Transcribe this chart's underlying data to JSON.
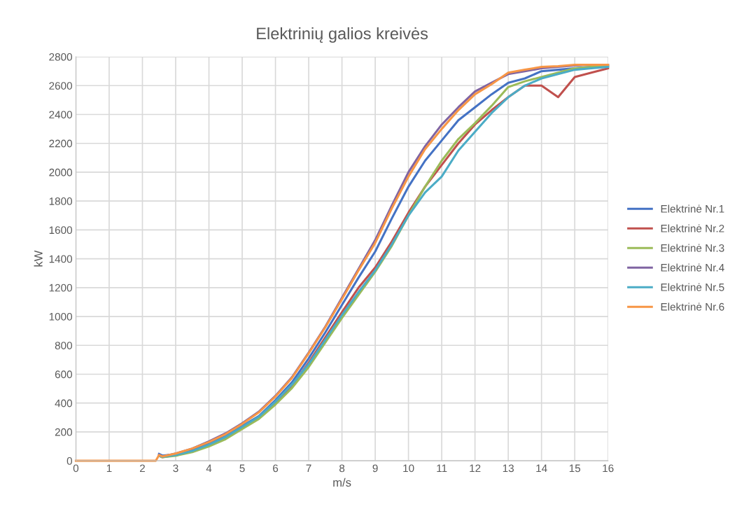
{
  "chart_data": {
    "type": "line",
    "title": "Elektrinių galios kreivės",
    "xlabel": "m/s",
    "ylabel": "kW",
    "x": [
      0,
      1,
      2,
      2.4,
      2.5,
      2.6,
      3,
      3.5,
      4,
      4.5,
      5,
      5.5,
      6,
      6.5,
      7,
      7.5,
      8,
      8.5,
      9,
      9.5,
      10,
      10.5,
      11,
      11.5,
      12,
      12.5,
      13,
      13.5,
      14,
      14.5,
      15,
      15.5,
      16
    ],
    "series": [
      {
        "name": "Elektrinė Nr.1",
        "color": "#4472c4",
        "values": [
          null,
          null,
          null,
          null,
          48,
          36,
          45,
          75,
          120,
          170,
          240,
          310,
          420,
          545,
          710,
          890,
          1080,
          1270,
          1450,
          1680,
          1900,
          2080,
          2220,
          2360,
          2450,
          2540,
          2620,
          2650,
          2700,
          2710,
          2720,
          2730,
          2735
        ]
      },
      {
        "name": "Elektrinė Nr.2",
        "color": "#c0504d",
        "values": [
          null,
          null,
          null,
          null,
          35,
          25,
          40,
          65,
          110,
          160,
          230,
          300,
          400,
          520,
          680,
          855,
          1030,
          1200,
          1340,
          1520,
          1720,
          1900,
          2050,
          2200,
          2330,
          2430,
          2520,
          2600,
          2600,
          2520,
          2660,
          2690,
          2720
        ]
      },
      {
        "name": "Elektrinė Nr.3",
        "color": "#9bbb59",
        "values": [
          null,
          null,
          null,
          null,
          35,
          25,
          35,
          60,
          100,
          150,
          220,
          290,
          390,
          505,
          650,
          820,
          990,
          1150,
          1310,
          1490,
          1700,
          1900,
          2080,
          2230,
          2340,
          2460,
          2590,
          2630,
          2660,
          2690,
          2720,
          2730,
          2730
        ]
      },
      {
        "name": "Elektrinė Nr.4",
        "color": "#8064a2",
        "values": [
          null,
          null,
          null,
          null,
          40,
          30,
          50,
          85,
          135,
          190,
          260,
          340,
          450,
          580,
          750,
          930,
          1130,
          1330,
          1530,
          1770,
          2000,
          2180,
          2330,
          2450,
          2560,
          2620,
          2680,
          2700,
          2720,
          2730,
          2740,
          2745,
          2745
        ]
      },
      {
        "name": "Elektrinė Nr.5",
        "color": "#4bacc6",
        "values": [
          null,
          null,
          null,
          null,
          35,
          28,
          40,
          68,
          112,
          165,
          235,
          305,
          410,
          530,
          670,
          840,
          1010,
          1170,
          1320,
          1500,
          1700,
          1860,
          1970,
          2150,
          2280,
          2410,
          2520,
          2600,
          2650,
          2680,
          2710,
          2720,
          2730
        ]
      },
      {
        "name": "Elektrinė Nr.6",
        "color": "#f79646",
        "values": [
          0,
          0,
          0,
          0,
          40,
          30,
          50,
          85,
          130,
          185,
          255,
          335,
          445,
          575,
          745,
          925,
          1120,
          1320,
          1510,
          1750,
          1970,
          2160,
          2300,
          2430,
          2540,
          2610,
          2690,
          2710,
          2730,
          2735,
          2745,
          2745,
          2745
        ]
      }
    ],
    "xlim": [
      0,
      16
    ],
    "xticks": [
      0,
      1,
      2,
      3,
      4,
      5,
      6,
      7,
      8,
      9,
      10,
      11,
      12,
      13,
      14,
      15,
      16
    ],
    "ylim": [
      0,
      2800
    ],
    "yticks": [
      0,
      200,
      400,
      600,
      800,
      1000,
      1200,
      1400,
      1600,
      1800,
      2000,
      2200,
      2400,
      2600,
      2800
    ],
    "grid": true,
    "legend": "right",
    "marker": "none",
    "line_style": "solid"
  }
}
